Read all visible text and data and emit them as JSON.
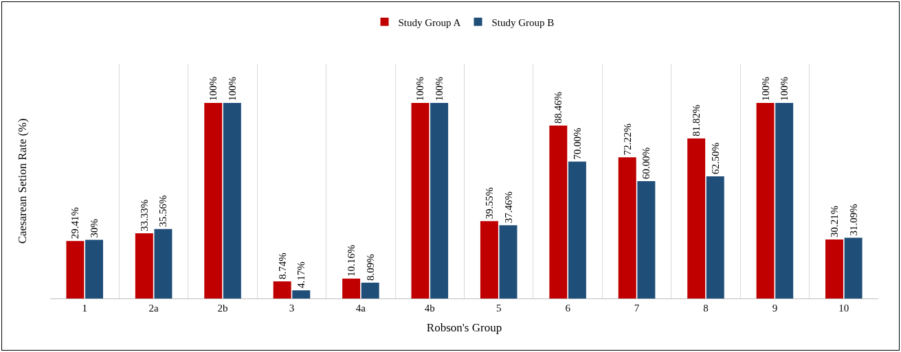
{
  "chart_data": {
    "type": "bar",
    "xlabel": "Robson's Group",
    "ylabel": "Caesarean Setion Rate (%)",
    "categories": [
      "1",
      "2a",
      "2b",
      "3",
      "4a",
      "4b",
      "5",
      "6",
      "7",
      "8",
      "9",
      "10"
    ],
    "series": [
      {
        "name": "Study Group A",
        "color": "#c00000",
        "values": [
          29.41,
          33.33,
          100,
          8.74,
          10.16,
          100,
          39.55,
          88.46,
          72.22,
          81.82,
          100,
          30.21
        ],
        "value_labels": [
          "29.41%",
          "33.33%",
          "100%",
          "8.74%",
          "10.16%",
          "100%",
          "39.55%",
          "88.46%",
          "72.22%",
          "81.82%",
          "100%",
          "30.21%"
        ]
      },
      {
        "name": "Study Group B",
        "color": "#1f4e79",
        "values": [
          30,
          35.56,
          100,
          4.17,
          8.09,
          100,
          37.46,
          70.0,
          60.0,
          62.5,
          100,
          31.09
        ],
        "value_labels": [
          "30%",
          "35.56%",
          "100%",
          "4.17%",
          "8.09%",
          "100%",
          "37.46%",
          "70.00%",
          "60.00%",
          "62.50%",
          "100%",
          "31.09%"
        ]
      }
    ],
    "ylim": [
      0,
      120
    ],
    "grid": "x",
    "legend": "top"
  }
}
